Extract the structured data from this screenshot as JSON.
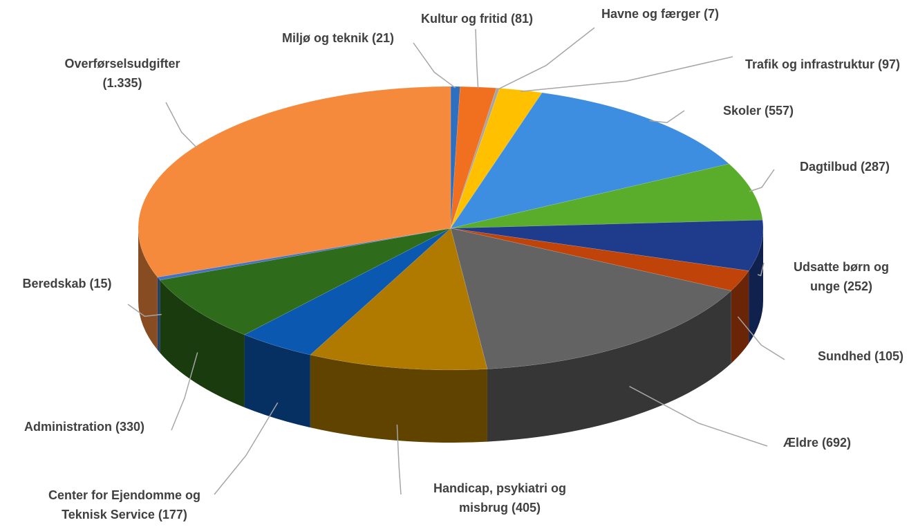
{
  "chart_data": {
    "type": "pie3d",
    "categories": [
      "Miljø og teknik",
      "Kultur og fritid",
      "Havne og færger",
      "Trafik og infrastruktur",
      "Skoler",
      "Dagtilbud",
      "Udsatte børn og unge",
      "Sundhed",
      "Ældre",
      "Handicap, psykiatri og misbrug",
      "Center for Ejendomme og Teknisk Service",
      "Administration",
      "Beredskab",
      "Overførselsudgifter"
    ],
    "values": [
      21,
      81,
      7,
      97,
      557,
      287,
      252,
      105,
      692,
      405,
      177,
      330,
      15,
      1335
    ],
    "value_labels": [
      "(21)",
      "(81)",
      "(7)",
      "(97)",
      "(557)",
      "(287)",
      "(252)",
      "(105)",
      "(692)",
      "(405)",
      "(177)",
      "(330)",
      "(15)",
      "(1.335)"
    ],
    "colors": [
      "#2f6fc0",
      "#f07020",
      "#a5a5a5",
      "#ffc000",
      "#3d8ee0",
      "#5aad2a",
      "#1f3c8c",
      "#c0440a",
      "#636363",
      "#b07a00",
      "#0a58b0",
      "#2e6b1a",
      "#4472c4",
      "#f58a3c"
    ]
  }
}
